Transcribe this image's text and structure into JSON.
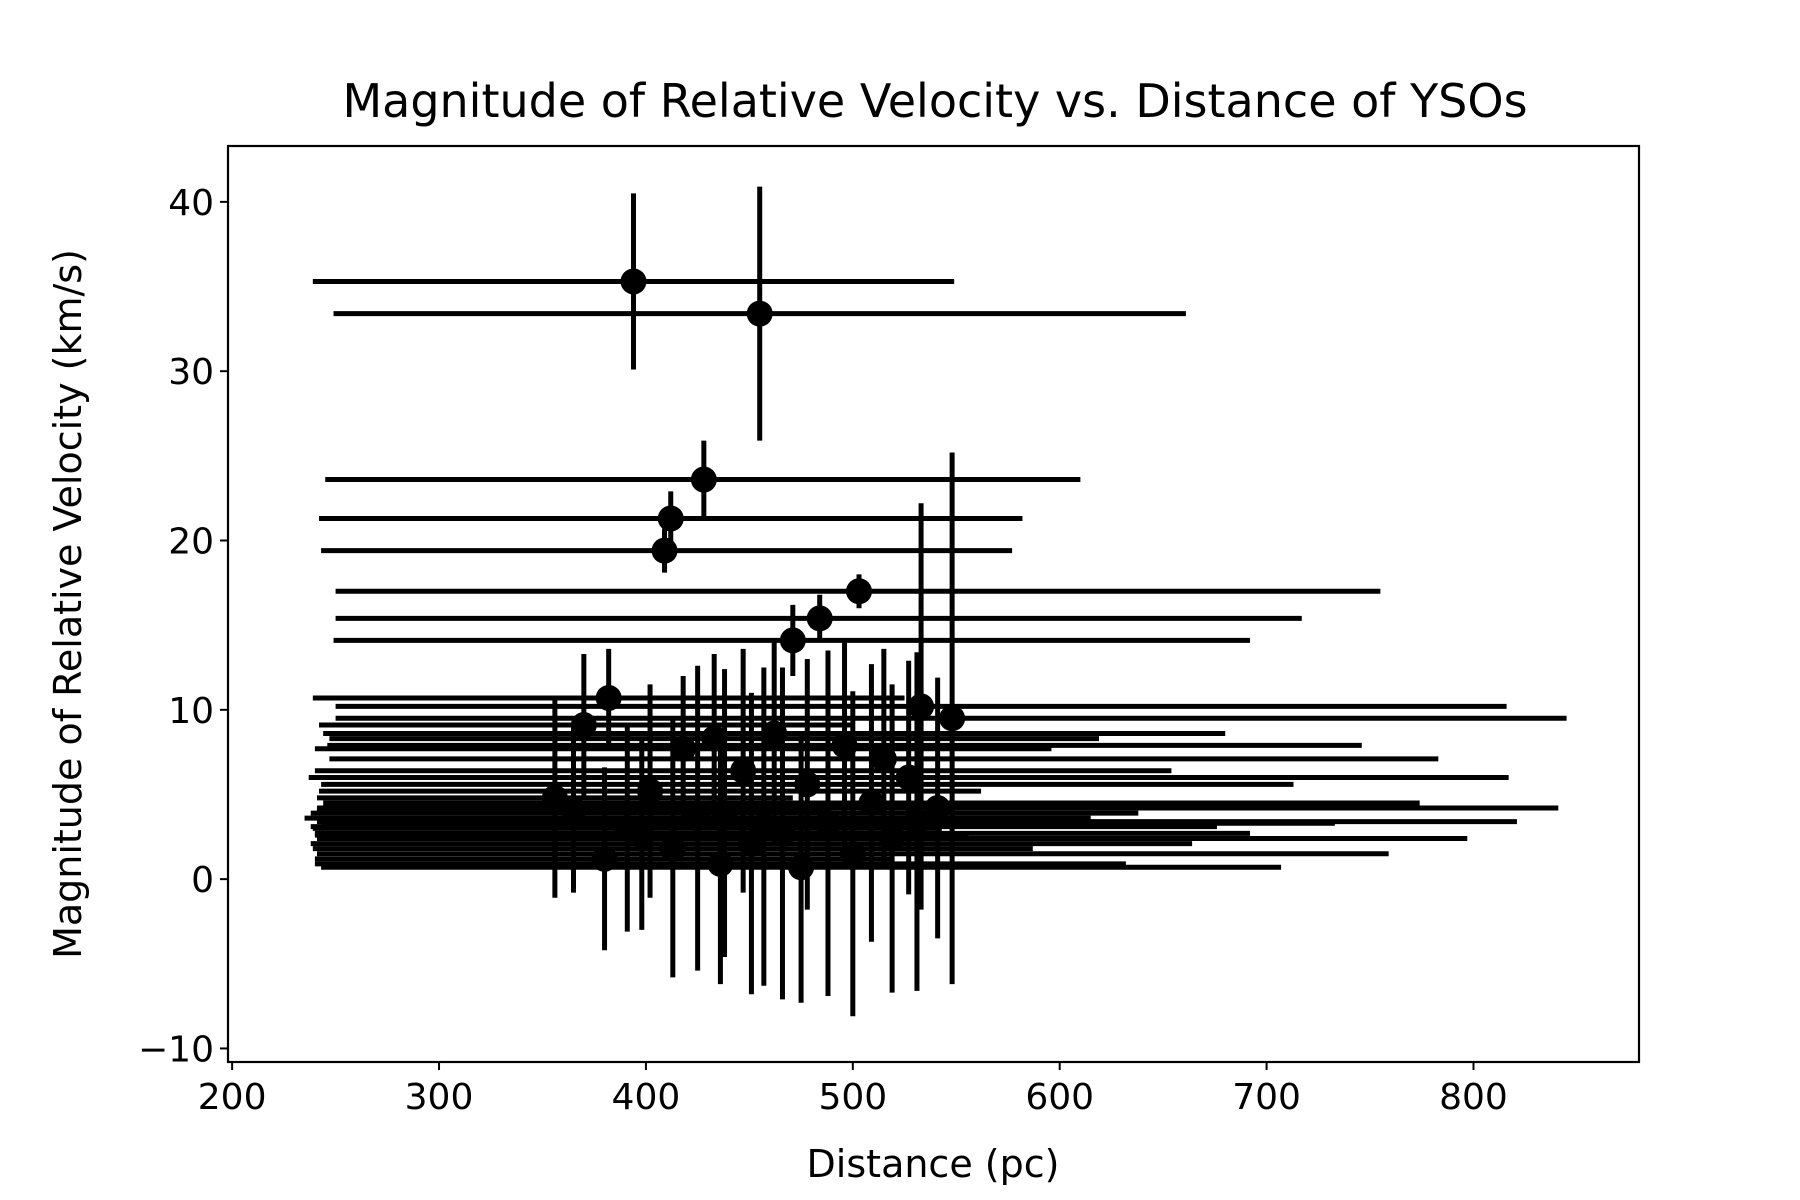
{
  "chart_data": {
    "type": "scatter",
    "title": "Magnitude of Relative Velocity vs. Distance of YSOs",
    "xlabel": "Distance (pc)",
    "ylabel": "Magnitude of Relative Velocity (km/s)",
    "xlim": [
      198,
      880
    ],
    "ylim": [
      -10.8,
      43.3
    ],
    "xticks": [
      200,
      300,
      400,
      500,
      600,
      700,
      800
    ],
    "yticks": [
      -10,
      0,
      10,
      20,
      30,
      40
    ],
    "xtick_labels": [
      "200",
      "300",
      "400",
      "500",
      "600",
      "700",
      "800"
    ],
    "ytick_labels": [
      "−10",
      "0",
      "10",
      "20",
      "30",
      "40"
    ],
    "grid": false,
    "legend": "none",
    "marker_color": "#000000",
    "series": [
      {
        "points": [
          {
            "x": 394,
            "y": 35.3,
            "xerr": [
              155,
              155
            ],
            "yerr": [
              5.2,
              5.2
            ]
          },
          {
            "x": 455,
            "y": 33.4,
            "xerr": [
              206,
              206
            ],
            "yerr": [
              7.5,
              7.5
            ]
          },
          {
            "x": 428,
            "y": 23.6,
            "xerr": [
              183,
              182
            ],
            "yerr": [
              2.3,
              2.3
            ]
          },
          {
            "x": 412,
            "y": 21.3,
            "xerr": [
              170,
              170
            ],
            "yerr": [
              1.6,
              1.6
            ]
          },
          {
            "x": 409,
            "y": 19.4,
            "xerr": [
              166,
              168
            ],
            "yerr": [
              1.3,
              1.3
            ]
          },
          {
            "x": 503,
            "y": 17.0,
            "xerr": [
              253,
              252
            ],
            "yerr": [
              1.0,
              1.0
            ]
          },
          {
            "x": 484,
            "y": 15.4,
            "xerr": [
              234,
              233
            ],
            "yerr": [
              1.4,
              1.4
            ]
          },
          {
            "x": 471,
            "y": 14.1,
            "xerr": [
              222,
              221
            ],
            "yerr": [
              2.1,
              2.1
            ]
          },
          {
            "x": 382,
            "y": 10.7,
            "xerr": [
              143,
              143
            ],
            "yerr": [
              2.9,
              2.9
            ]
          },
          {
            "x": 533,
            "y": 10.2,
            "xerr": [
              283,
              283
            ],
            "yerr": [
              12.0,
              12.0
            ]
          },
          {
            "x": 548,
            "y": 9.5,
            "xerr": [
              298,
              297
            ],
            "yerr": [
              15.7,
              15.7
            ]
          },
          {
            "x": 370,
            "y": 9.1,
            "xerr": [
              128,
              129
            ],
            "yerr": [
              4.2,
              4.2
            ]
          },
          {
            "x": 433,
            "y": 8.3,
            "xerr": [
              186,
              186
            ],
            "yerr": [
              5.0,
              5.0
            ]
          },
          {
            "x": 418,
            "y": 7.7,
            "xerr": [
              178,
              178
            ],
            "yerr": [
              4.3,
              4.3
            ]
          },
          {
            "x": 496,
            "y": 7.9,
            "xerr": [
              250,
              250
            ],
            "yerr": [
              6.1,
              6.1
            ]
          },
          {
            "x": 462,
            "y": 8.6,
            "xerr": [
              218,
              218
            ],
            "yerr": [
              5.5,
              5.5
            ]
          },
          {
            "x": 515,
            "y": 7.1,
            "xerr": [
              268,
              268
            ],
            "yerr": [
              6.5,
              6.5
            ]
          },
          {
            "x": 447,
            "y": 6.4,
            "xerr": [
              207,
              207
            ],
            "yerr": [
              7.2,
              7.2
            ]
          },
          {
            "x": 527,
            "y": 6.0,
            "xerr": [
              290,
              290
            ],
            "yerr": [
              6.9,
              6.9
            ]
          },
          {
            "x": 478,
            "y": 5.6,
            "xerr": [
              235,
              235
            ],
            "yerr": [
              7.4,
              7.4
            ]
          },
          {
            "x": 402,
            "y": 5.2,
            "xerr": [
              160,
              160
            ],
            "yerr": [
              6.3,
              6.3
            ]
          },
          {
            "x": 356,
            "y": 4.8,
            "xerr": [
              115,
              115
            ],
            "yerr": [
              5.9,
              5.9
            ]
          },
          {
            "x": 509,
            "y": 4.5,
            "xerr": [
              265,
              265
            ],
            "yerr": [
              8.2,
              8.2
            ]
          },
          {
            "x": 541,
            "y": 4.2,
            "xerr": [
              300,
              300
            ],
            "yerr": [
              7.7,
              7.7
            ]
          },
          {
            "x": 438,
            "y": 3.9,
            "xerr": [
              200,
              200
            ],
            "yerr": [
              8.5,
              8.5
            ]
          },
          {
            "x": 425,
            "y": 3.6,
            "xerr": [
              190,
              190
            ],
            "yerr": [
              9.0,
              9.0
            ]
          },
          {
            "x": 488,
            "y": 3.3,
            "xerr": [
              245,
              245
            ],
            "yerr": [
              10.2,
              10.2
            ]
          },
          {
            "x": 391,
            "y": 3.0,
            "xerr": [
              152,
              152
            ],
            "yerr": [
              6.1,
              6.1
            ]
          },
          {
            "x": 466,
            "y": 2.7,
            "xerr": [
              226,
              226
            ],
            "yerr": [
              9.8,
              9.8
            ]
          },
          {
            "x": 519,
            "y": 2.4,
            "xerr": [
              278,
              278
            ],
            "yerr": [
              9.1,
              9.1
            ]
          },
          {
            "x": 451,
            "y": 2.1,
            "xerr": [
              213,
              213
            ],
            "yerr": [
              8.9,
              8.9
            ]
          },
          {
            "x": 413,
            "y": 1.8,
            "xerr": [
              174,
              174
            ],
            "yerr": [
              7.6,
              7.6
            ]
          },
          {
            "x": 500,
            "y": 1.5,
            "xerr": [
              259,
              259
            ],
            "yerr": [
              9.6,
              9.6
            ]
          },
          {
            "x": 380,
            "y": 1.2,
            "xerr": [
              140,
              140
            ],
            "yerr": [
              5.4,
              5.4
            ]
          },
          {
            "x": 436,
            "y": 0.9,
            "xerr": [
              196,
              196
            ],
            "yerr": [
              7.1,
              7.1
            ]
          },
          {
            "x": 475,
            "y": 0.7,
            "xerr": [
              232,
              232
            ],
            "yerr": [
              8.0,
              8.0
            ]
          },
          {
            "x": 365,
            "y": 4.1,
            "xerr": [
              124,
              124
            ],
            "yerr": [
              4.9,
              4.9
            ]
          },
          {
            "x": 398,
            "y": 2.6,
            "xerr": [
              158,
              158
            ],
            "yerr": [
              5.6,
              5.6
            ]
          },
          {
            "x": 457,
            "y": 3.1,
            "xerr": [
              219,
              219
            ],
            "yerr": [
              9.4,
              9.4
            ]
          },
          {
            "x": 531,
            "y": 3.4,
            "xerr": [
              290,
              290
            ],
            "yerr": [
              10.0,
              10.0
            ]
          }
        ]
      }
    ]
  }
}
